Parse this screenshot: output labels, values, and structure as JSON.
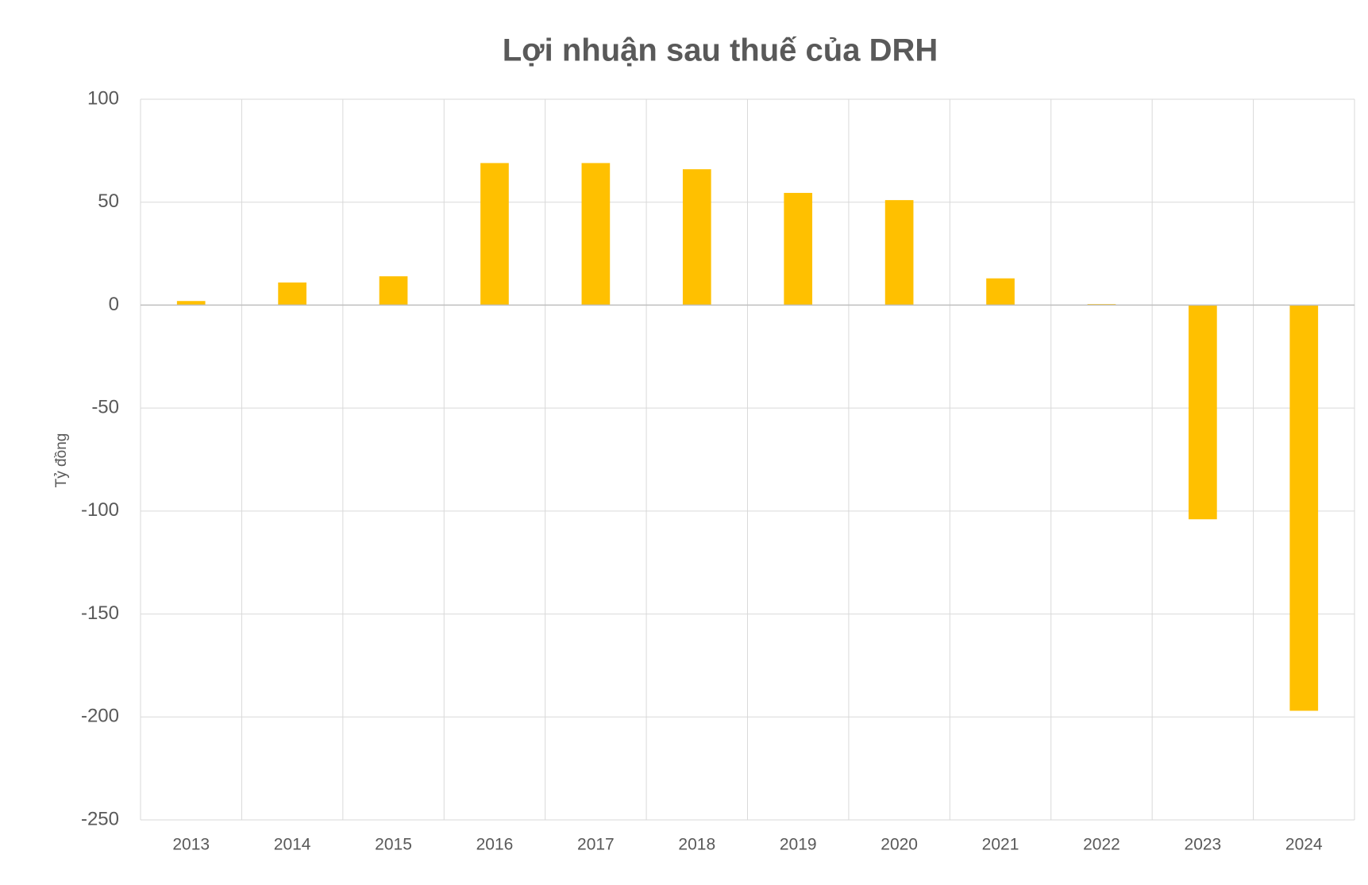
{
  "chart_data": {
    "type": "bar",
    "title": "Lợi nhuận sau thuế của DRH",
    "y_label": "Tỷ đồng",
    "categories": [
      "2013",
      "2014",
      "2015",
      "2016",
      "2017",
      "2018",
      "2019",
      "2020",
      "2021",
      "2022",
      "2023",
      "2024"
    ],
    "values": [
      2,
      11,
      14,
      69,
      69,
      66,
      54.5,
      51,
      13,
      0.5,
      -104,
      -197
    ],
    "color": "#ffc000",
    "ylim": [
      -250,
      100
    ],
    "yticks": [
      -250,
      -200,
      -150,
      -100,
      -50,
      0,
      50,
      100
    ],
    "grid": true
  }
}
